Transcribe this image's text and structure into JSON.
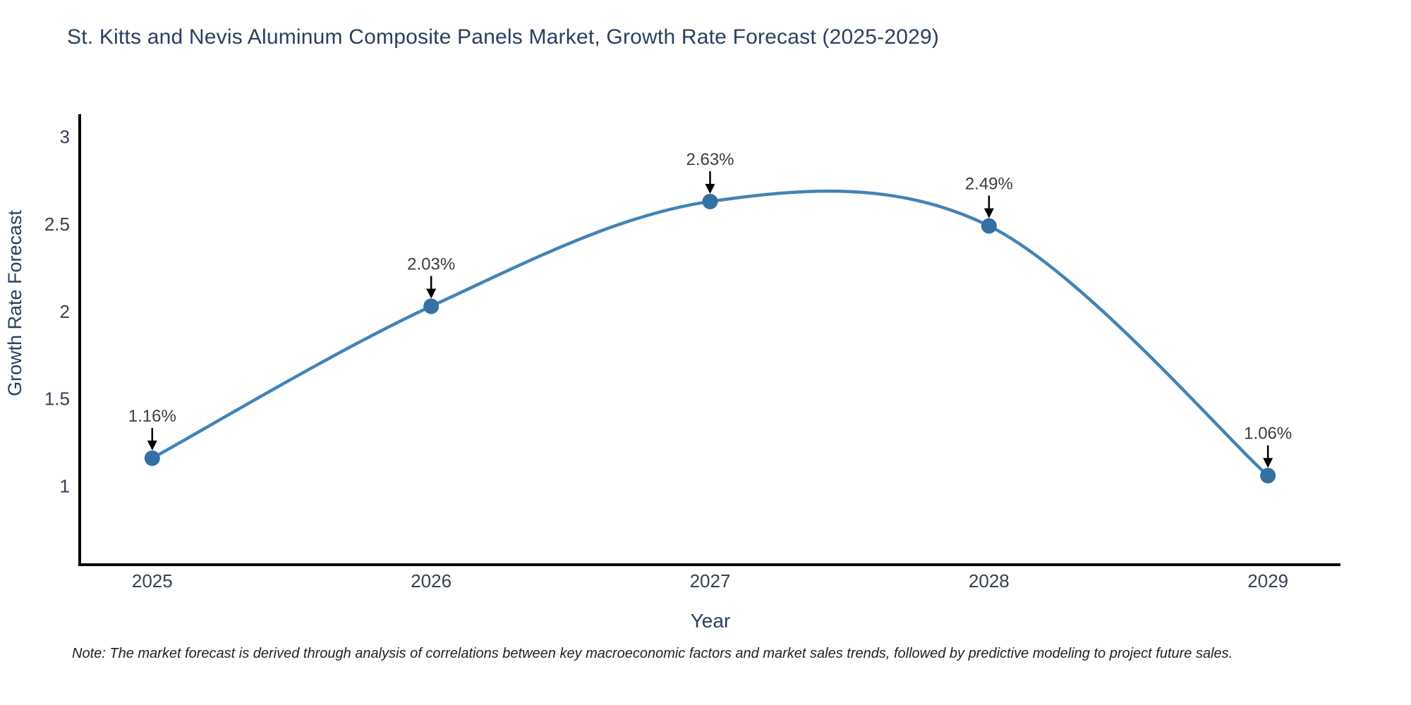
{
  "page": {
    "title": "St. Kitts and Nevis Aluminum Composite Panels Market, Growth Rate Forecast (2025-2029)",
    "note": "Note: The market forecast is derived through analysis of correlations between key macroeconomic factors and market sales trends, followed by predictive modeling to project future sales."
  },
  "chart_data": {
    "type": "line",
    "title": "St. Kitts and Nevis Aluminum Composite Panels Market, Growth Rate Forecast (2025-2029)",
    "xlabel": "Year",
    "ylabel": "Growth Rate Forecast",
    "x": [
      2025,
      2026,
      2027,
      2028,
      2029
    ],
    "series": [
      {
        "name": "Growth Rate Forecast",
        "values": [
          1.16,
          2.03,
          2.63,
          2.49,
          1.06
        ]
      }
    ],
    "point_labels": [
      "1.16%",
      "2.03%",
      "2.49%",
      "1.06%",
      "2.63%"
    ],
    "point_labels_ordered": [
      "1.16%",
      "2.03%",
      "2.63%",
      "2.49%",
      "1.06%"
    ],
    "y_ticks": [
      1,
      1.5,
      2,
      2.5,
      3
    ],
    "y_tick_labels": [
      "1",
      "1.5",
      "2",
      "2.5",
      "3"
    ],
    "x_tick_labels": [
      "2025",
      "2026",
      "2027",
      "2028",
      "2029"
    ],
    "xlim": [
      2024.74,
      2029.26
    ],
    "ylim": [
      0.55,
      3.13
    ],
    "grid": false,
    "legend": "none",
    "line_shape": "spline",
    "colors": {
      "line": "#4383b4",
      "marker": "#3470a2",
      "axis": "#000000",
      "annotation_arrow": "#000000",
      "title_text": "#2a3f5f",
      "tick_text": "#37414f",
      "label_text": "#3d3d3d",
      "background": "#ffffff"
    }
  }
}
